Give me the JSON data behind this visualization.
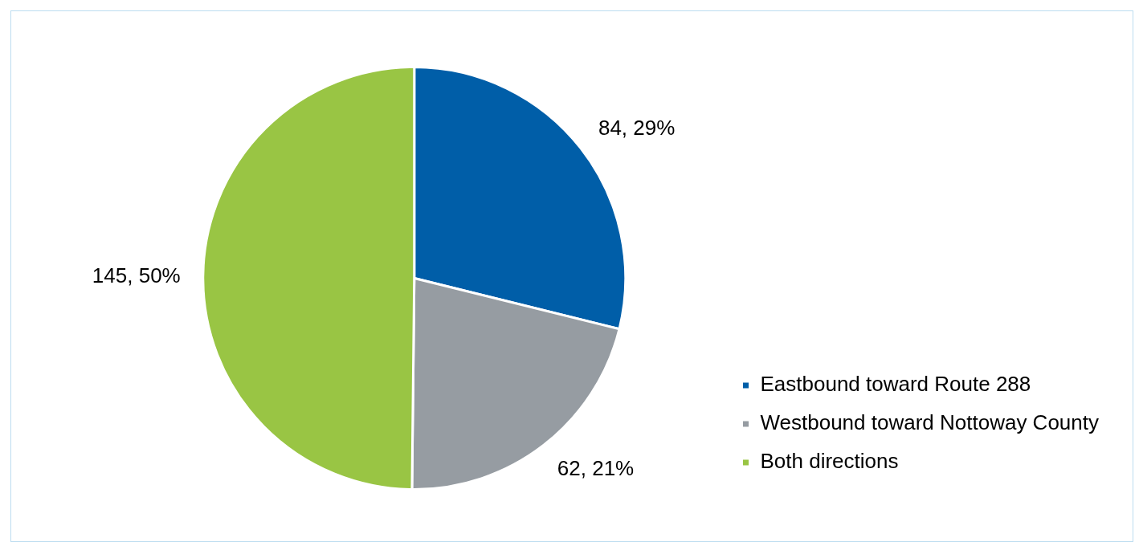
{
  "chart_data": {
    "type": "pie",
    "categories": [
      "Eastbound toward Route 288",
      "Westbound toward Nottoway County",
      "Both directions"
    ],
    "values": [
      84,
      62,
      145
    ],
    "colors": [
      "#005ea8",
      "#969ca2",
      "#99c544"
    ],
    "value_labels": [
      "84, 29%",
      "62, 21%",
      "145, 50%"
    ],
    "legend": "bottom right"
  }
}
